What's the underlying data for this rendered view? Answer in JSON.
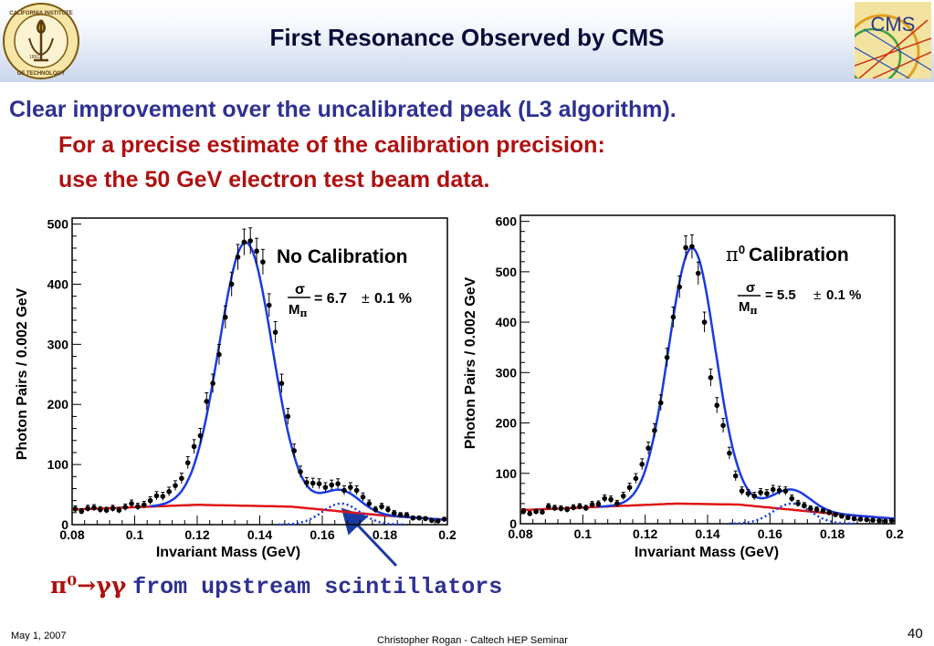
{
  "slide": {
    "title": "First Resonance Observed by CMS",
    "line1": "Clear improvement over the uncalibrated peak (L3 algorithm).",
    "line2": "For a precise estimate of the calibration precision:",
    "line3": "use the 50 GeV electron test beam data.",
    "note_symbol": "π⁰→γγ",
    "note_text": "from upstream scintillators",
    "footer_date": "May 1, 2007",
    "footer_center": "Christopher Rogan - Caltech HEP Seminar",
    "page_number": "40",
    "logo_right_text": "CMS"
  },
  "colors": {
    "title": "#0a0a3a",
    "line1": "#2e3192",
    "line2": "#b01010",
    "fit": "#1a3be0",
    "background_fit": "#e01515",
    "arrow": "#1a3ba0"
  },
  "chart_data": [
    {
      "type": "scatter",
      "title": "No Calibration",
      "annotation": "σ/Mπ = 6.7 ± 0.1 %",
      "xlabel": "Invariant Mass (GeV)",
      "ylabel": "Photon Pairs / 0.002 GeV",
      "xlim": [
        0.08,
        0.2
      ],
      "ylim": [
        0,
        510
      ],
      "xticks": [
        "0.08",
        "0.1",
        "0.12",
        "0.14",
        "0.16",
        "0.18",
        "0.2"
      ],
      "yticks": [
        "0",
        "100",
        "200",
        "300",
        "400",
        "500"
      ],
      "signal": {
        "mean": 0.1355,
        "sigma": 0.0085,
        "amp": 438
      },
      "shoulder": {
        "mean": 0.166,
        "sigma": 0.006,
        "amp": 35
      },
      "background": {
        "points": [
          [
            0.08,
            25
          ],
          [
            0.12,
            33
          ],
          [
            0.15,
            30
          ],
          [
            0.18,
            15
          ],
          [
            0.2,
            8
          ]
        ]
      },
      "x": [
        0.081,
        0.083,
        0.085,
        0.087,
        0.089,
        0.091,
        0.093,
        0.095,
        0.097,
        0.099,
        0.101,
        0.103,
        0.105,
        0.107,
        0.109,
        0.111,
        0.113,
        0.115,
        0.117,
        0.119,
        0.121,
        0.123,
        0.125,
        0.127,
        0.129,
        0.131,
        0.133,
        0.135,
        0.137,
        0.139,
        0.141,
        0.143,
        0.145,
        0.147,
        0.149,
        0.151,
        0.153,
        0.155,
        0.157,
        0.159,
        0.161,
        0.163,
        0.165,
        0.167,
        0.169,
        0.171,
        0.173,
        0.175,
        0.177,
        0.179,
        0.181,
        0.183,
        0.185,
        0.187,
        0.189,
        0.191,
        0.193,
        0.195,
        0.197,
        0.199
      ],
      "y": [
        26,
        22,
        27,
        28,
        25,
        24,
        27,
        24,
        29,
        35,
        30,
        33,
        40,
        48,
        47,
        55,
        65,
        77,
        103,
        130,
        148,
        205,
        235,
        283,
        345,
        400,
        445,
        470,
        472,
        455,
        437,
        365,
        320,
        235,
        180,
        123,
        88,
        70,
        69,
        68,
        62,
        66,
        68,
        57,
        62,
        57,
        46,
        35,
        25,
        30,
        25,
        19,
        16,
        16,
        11,
        11,
        10,
        7,
        6,
        9
      ],
      "legend_text": [
        "No Calibration",
        "= 6.7",
        "0.1 %"
      ]
    },
    {
      "type": "scatter",
      "title": "π0 Calibration",
      "annotation": "σ/Mπ = 5.5 ± 0.1 %",
      "xlabel": "Invariant Mass (GeV)",
      "ylabel": "Photon Pairs / 0.002 GeV",
      "xlim": [
        0.08,
        0.2
      ],
      "ylim": [
        0,
        612
      ],
      "xticks": [
        "0.08",
        "0.1",
        "0.12",
        "0.14",
        "0.16",
        "0.18",
        "0.2"
      ],
      "yticks": [
        "0",
        "100",
        "200",
        "300",
        "400",
        "500",
        "600"
      ],
      "signal": {
        "mean": 0.135,
        "sigma": 0.0075,
        "amp": 508
      },
      "shoulder": {
        "mean": 0.167,
        "sigma": 0.006,
        "amp": 40
      },
      "background": {
        "points": [
          [
            0.08,
            27
          ],
          [
            0.13,
            40
          ],
          [
            0.15,
            38
          ],
          [
            0.18,
            20
          ],
          [
            0.2,
            10
          ]
        ]
      },
      "x": [
        0.081,
        0.083,
        0.085,
        0.087,
        0.089,
        0.091,
        0.093,
        0.095,
        0.097,
        0.099,
        0.101,
        0.103,
        0.105,
        0.107,
        0.109,
        0.111,
        0.113,
        0.115,
        0.117,
        0.119,
        0.121,
        0.123,
        0.125,
        0.127,
        0.129,
        0.131,
        0.133,
        0.135,
        0.137,
        0.139,
        0.141,
        0.143,
        0.145,
        0.147,
        0.149,
        0.151,
        0.153,
        0.155,
        0.157,
        0.159,
        0.161,
        0.163,
        0.165,
        0.167,
        0.169,
        0.171,
        0.173,
        0.175,
        0.177,
        0.179,
        0.181,
        0.183,
        0.185,
        0.187,
        0.189,
        0.191,
        0.193,
        0.195,
        0.197,
        0.199
      ],
      "y": [
        25,
        20,
        24,
        23,
        34,
        31,
        30,
        28,
        32,
        34,
        31,
        38,
        39,
        50,
        48,
        40,
        55,
        72,
        90,
        118,
        150,
        185,
        240,
        330,
        410,
        470,
        548,
        550,
        497,
        400,
        290,
        235,
        195,
        140,
        95,
        65,
        60,
        55,
        62,
        60,
        68,
        66,
        65,
        50,
        40,
        36,
        30,
        28,
        25,
        22,
        18,
        15,
        12,
        10,
        9,
        8,
        7,
        6,
        5,
        6
      ],
      "legend_text": [
        "Calibration",
        "= 5.5",
        "0.1 %"
      ]
    }
  ]
}
